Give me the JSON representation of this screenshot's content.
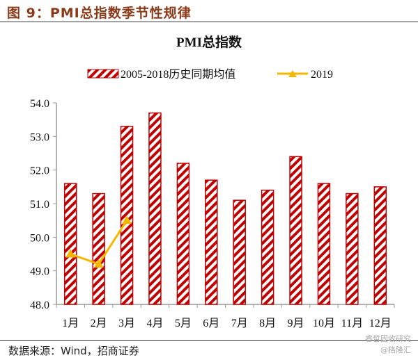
{
  "figure_title": "图 9：PMI总指数季节性规律",
  "source": "数据来源：Wind，招商证券",
  "watermark": [
    "睿哲固收研究",
    "@格隆汇"
  ],
  "colors": {
    "bar": "#c00000",
    "line": "#f5b800",
    "title": "#8b3a1a"
  },
  "chart_data": {
    "type": "bar",
    "title": "PMI总指数",
    "categories": [
      "1月",
      "2月",
      "3月",
      "4月",
      "5月",
      "6月",
      "7月",
      "8月",
      "9月",
      "10月",
      "11月",
      "12月"
    ],
    "series": [
      {
        "name": "2005-2018历史同期均值",
        "type": "bar",
        "pattern": "diagonal-stripes",
        "values": [
          51.6,
          51.3,
          53.3,
          53.7,
          52.2,
          51.7,
          51.1,
          51.4,
          52.4,
          51.6,
          51.3,
          51.5
        ]
      },
      {
        "name": "2019",
        "type": "line",
        "marker": "triangle",
        "values": [
          49.5,
          49.2,
          50.5,
          null,
          null,
          null,
          null,
          null,
          null,
          null,
          null,
          null
        ]
      }
    ],
    "ylim": [
      48.0,
      54.0
    ],
    "yticks": [
      "48.0",
      "49.0",
      "50.0",
      "51.0",
      "52.0",
      "53.0",
      "54.0"
    ],
    "grid": false,
    "legend": "top"
  }
}
